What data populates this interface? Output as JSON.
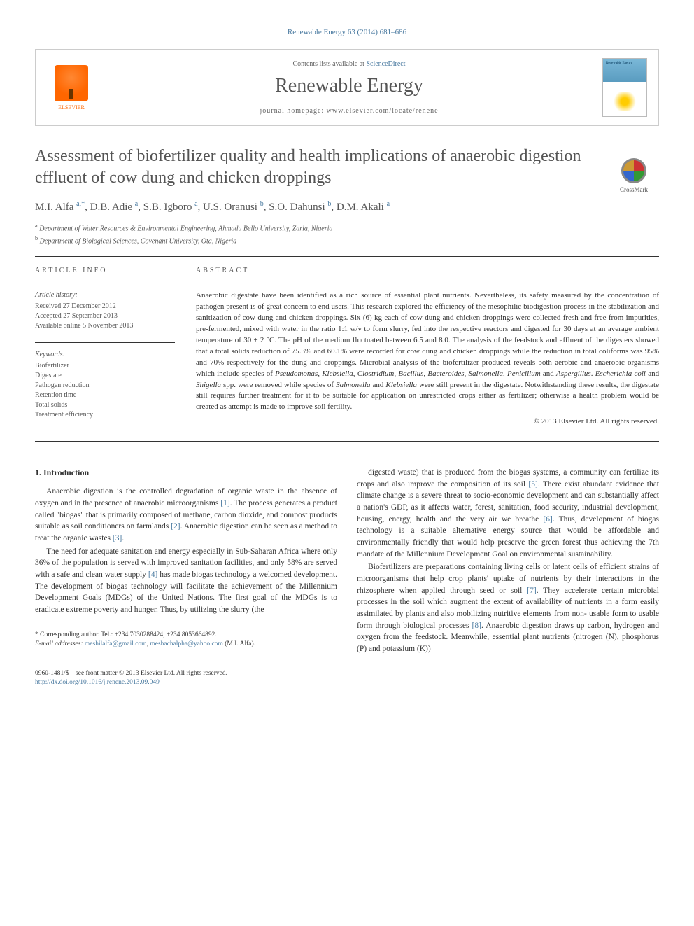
{
  "journal_ref": "Renewable Energy 63 (2014) 681–686",
  "header": {
    "publisher_name": "ELSEVIER",
    "contents_prefix": "Contents lists available at ",
    "contents_link": "ScienceDirect",
    "journal_name": "Renewable Energy",
    "homepage_prefix": "journal homepage: ",
    "homepage_url": "www.elsevier.com/locate/renene",
    "cover_label": "Renewable Energy"
  },
  "crossmark_label": "CrossMark",
  "title": "Assessment of biofertilizer quality and health implications of anaerobic digestion effluent of cow dung and chicken droppings",
  "authors_html": "M.I. Alfa <sup>a,*</sup>, D.B. Adie <sup>a</sup>, S.B. Igboro <sup>a</sup>, U.S. Oranusi <sup>b</sup>, S.O. Dahunsi <sup>b</sup>, D.M. Akali <sup>a</sup>",
  "affiliations": {
    "a": "Department of Water Resources & Environmental Engineering, Ahmadu Bello University, Zaria, Nigeria",
    "b": "Department of Biological Sciences, Covenant University, Ota, Nigeria"
  },
  "article_info": {
    "heading": "ARTICLE INFO",
    "history_label": "Article history:",
    "received": "Received 27 December 2012",
    "accepted": "Accepted 27 September 2013",
    "available": "Available online 5 November 2013",
    "keywords_label": "Keywords:",
    "keywords": [
      "Biofertilizer",
      "Digestate",
      "Pathogen reduction",
      "Retention time",
      "Total solids",
      "Treatment efficiency"
    ]
  },
  "abstract": {
    "heading": "ABSTRACT",
    "text": "Anaerobic digestate have been identified as a rich source of essential plant nutrients. Nevertheless, its safety measured by the concentration of pathogen present is of great concern to end users. This research explored the efficiency of the mesophilic biodigestion process in the stabilization and sanitization of cow dung and chicken droppings. Six (6) kg each of cow dung and chicken droppings were collected fresh and free from impurities, pre-fermented, mixed with water in the ratio 1:1 w/v to form slurry, fed into the respective reactors and digested for 30 days at an average ambient temperature of 30 ± 2 °C. The pH of the medium fluctuated between 6.5 and 8.0. The analysis of the feedstock and effluent of the digesters showed that a total solids reduction of 75.3% and 60.1% were recorded for cow dung and chicken droppings while the reduction in total coliforms was 95% and 70% respectively for the dung and droppings. Microbial analysis of the biofertilizer produced reveals both aerobic and anaerobic organisms which include species of Pseudomonas, Klebsiella, Clostridium, Bacillus, Bacteroides, Salmonella, Penicillum and Aspergillus. Escherichia coli and Shigella spp. were removed while species of Salmonella and Klebsiella were still present in the digestate. Notwithstanding these results, the digestate still requires further treatment for it to be suitable for application on unrestricted crops either as fertilizer; otherwise a health problem would be created as attempt is made to improve soil fertility.",
    "copyright": "© 2013 Elsevier Ltd. All rights reserved."
  },
  "section1": {
    "heading": "1. Introduction",
    "p1": "Anaerobic digestion is the controlled degradation of organic waste in the absence of oxygen and in the presence of anaerobic microorganisms [1]. The process generates a product called \"biogas\" that is primarily composed of methane, carbon dioxide, and compost products suitable as soil conditioners on farmlands [2]. Anaerobic digestion can be seen as a method to treat the organic wastes [3].",
    "p2": "The need for adequate sanitation and energy especially in Sub-Saharan Africa where only 36% of the population is served with improved sanitation facilities, and only 58% are served with a safe and clean water supply [4] has made biogas technology a welcomed development. The development of biogas technology will facilitate the achievement of the Millennium Development Goals (MDGs) of the United Nations. The first goal of the MDGs is to eradicate extreme poverty and hunger. Thus, by utilizing the slurry (the",
    "p3": "digested waste) that is produced from the biogas systems, a community can fertilize its crops and also improve the composition of its soil [5]. There exist abundant evidence that climate change is a severe threat to socio-economic development and can substantially affect a nation's GDP, as it affects water, forest, sanitation, food security, industrial development, housing, energy, health and the very air we breathe [6]. Thus, development of biogas technology is a suitable alternative energy source that would be affordable and environmentally friendly that would help preserve the green forest thus achieving the 7th mandate of the Millennium Development Goal on environmental sustainability.",
    "p4": "Biofertilizers are preparations containing living cells or latent cells of efficient strains of microorganisms that help crop plants' uptake of nutrients by their interactions in the rhizosphere when applied through seed or soil [7]. They accelerate certain microbial processes in the soil which augment the extent of availability of nutrients in a form easily assimilated by plants and also mobilizing nutritive elements from non- usable form to usable form through biological processes [8]. Anaerobic digestion draws up carbon, hydrogen and oxygen from the feedstock. Meanwhile, essential plant nutrients (nitrogen (N), phosphorus (P) and potassium (K))"
  },
  "footnotes": {
    "corr": "* Corresponding author. Tel.: +234 7030288424, +234 8053664892.",
    "email_label": "E-mail addresses: ",
    "email1": "meshilalfa@gmail.com",
    "email2": "meshachalpha@yahoo.com",
    "email_suffix": " (M.I. Alfa)."
  },
  "footer": {
    "issn_line": "0960-1481/$ – see front matter © 2013 Elsevier Ltd. All rights reserved.",
    "doi": "http://dx.doi.org/10.1016/j.renene.2013.09.049"
  },
  "colors": {
    "link": "#4a7aa0",
    "text": "#333333",
    "heading_gray": "#555555",
    "elsevier_orange": "#ff6600"
  }
}
